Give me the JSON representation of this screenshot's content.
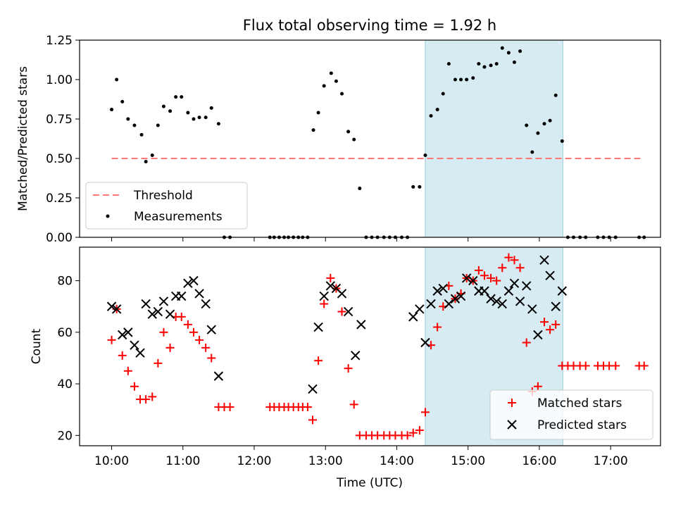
{
  "chart_data": {
    "title": "Flux total observing time = 1.92 h",
    "xlabel": "Time (UTC)",
    "x_unit": "hours UTC",
    "xlim": [
      9.55,
      17.7
    ],
    "x_ticks": [
      {
        "value": 10,
        "label": "10:00"
      },
      {
        "value": 11,
        "label": "11:00"
      },
      {
        "value": 12,
        "label": "12:00"
      },
      {
        "value": 13,
        "label": "13:00"
      },
      {
        "value": 14,
        "label": "14:00"
      },
      {
        "value": 15,
        "label": "15:00"
      },
      {
        "value": 16,
        "label": "16:00"
      },
      {
        "value": 17,
        "label": "17:00"
      }
    ],
    "highlight_span": {
      "x_start": 14.4,
      "x_end": 16.33,
      "color": "#add8e6"
    },
    "top": {
      "type": "scatter",
      "ylabel": "Matched/Predicted stars",
      "ylim": [
        0,
        1.25
      ],
      "y_ticks": [
        "0.00",
        "0.25",
        "0.50",
        "0.75",
        "1.00",
        "1.25"
      ],
      "legend_position": "lower-left",
      "threshold": {
        "name": "Threshold",
        "value": 0.5,
        "x_range": [
          10.0,
          17.47
        ],
        "color": "#ff7777"
      },
      "series": [
        {
          "name": "Measurements",
          "color": "#000000",
          "x": [
            10.0,
            10.07,
            10.15,
            10.23,
            10.32,
            10.42,
            10.48,
            10.57,
            10.65,
            10.73,
            10.82,
            10.9,
            10.98,
            11.07,
            11.15,
            11.23,
            11.32,
            11.4,
            11.5,
            11.58,
            11.66,
            12.22,
            12.28,
            12.35,
            12.42,
            12.48,
            12.55,
            12.62,
            12.68,
            12.75,
            12.83,
            12.9,
            12.98,
            13.08,
            13.15,
            13.23,
            13.32,
            13.4,
            13.48,
            13.57,
            13.65,
            13.73,
            13.82,
            13.9,
            13.98,
            14.07,
            14.15,
            14.23,
            14.32,
            14.4,
            14.48,
            14.57,
            14.65,
            14.73,
            14.82,
            14.9,
            14.98,
            15.07,
            15.15,
            15.23,
            15.32,
            15.4,
            15.48,
            15.57,
            15.65,
            15.73,
            15.82,
            15.9,
            15.98,
            16.07,
            16.15,
            16.23,
            16.32,
            16.4,
            16.48,
            16.57,
            16.65,
            16.82,
            16.9,
            16.98,
            17.07,
            17.4,
            17.47
          ],
          "y": [
            0.81,
            1.0,
            0.86,
            0.75,
            0.71,
            0.65,
            0.48,
            0.52,
            0.71,
            0.83,
            0.8,
            0.89,
            0.89,
            0.79,
            0.75,
            0.76,
            0.76,
            0.82,
            0.72,
            0.0,
            0.0,
            0.0,
            0.0,
            0.0,
            0.0,
            0.0,
            0.0,
            0.0,
            0.0,
            0.0,
            0.68,
            0.79,
            0.96,
            1.04,
            0.99,
            0.91,
            0.67,
            0.62,
            0.31,
            0.0,
            0.0,
            0.0,
            0.0,
            0.0,
            0.0,
            0.0,
            0.0,
            0.32,
            0.32,
            0.52,
            0.77,
            0.81,
            0.91,
            1.1,
            1.0,
            1.0,
            1.0,
            1.01,
            1.1,
            1.08,
            1.09,
            1.1,
            1.2,
            1.17,
            1.11,
            1.18,
            0.71,
            0.54,
            0.66,
            0.72,
            0.74,
            0.9,
            0.61,
            0.0,
            0.0,
            0.0,
            0.0,
            0.0,
            0.0,
            0.0,
            0.0,
            0.0,
            0.0
          ]
        }
      ]
    },
    "bottom": {
      "type": "scatter",
      "ylabel": "Count",
      "ylim": [
        16,
        93
      ],
      "y_ticks": [
        20,
        40,
        60,
        80
      ],
      "legend_position": "lower-right",
      "series": [
        {
          "name": "Matched stars",
          "marker": "plus",
          "color": "#ff0000",
          "x": [
            10.0,
            10.07,
            10.15,
            10.23,
            10.32,
            10.4,
            10.48,
            10.57,
            10.65,
            10.73,
            10.82,
            10.9,
            10.98,
            11.07,
            11.15,
            11.23,
            11.32,
            11.4,
            11.5,
            11.58,
            11.66,
            12.22,
            12.28,
            12.35,
            12.42,
            12.48,
            12.55,
            12.62,
            12.68,
            12.75,
            12.82,
            12.9,
            12.98,
            13.07,
            13.15,
            13.23,
            13.32,
            13.4,
            13.48,
            13.57,
            13.65,
            13.73,
            13.82,
            13.9,
            13.98,
            14.07,
            14.15,
            14.23,
            14.32,
            14.4,
            14.48,
            14.57,
            14.65,
            14.73,
            14.82,
            14.9,
            14.98,
            15.07,
            15.15,
            15.23,
            15.32,
            15.4,
            15.48,
            15.57,
            15.65,
            15.73,
            15.82,
            15.9,
            15.98,
            16.07,
            16.15,
            16.23,
            16.32,
            16.4,
            16.48,
            16.57,
            16.65,
            16.82,
            16.9,
            16.98,
            17.07,
            17.4,
            17.47
          ],
          "y": [
            57,
            69,
            51,
            45,
            39,
            34,
            34,
            35,
            48,
            60,
            54,
            66,
            66,
            63,
            60,
            57,
            54,
            50,
            31,
            31,
            31,
            31,
            31,
            31,
            31,
            31,
            31,
            31,
            31,
            31,
            26,
            49,
            71,
            81,
            77,
            68,
            46,
            32,
            20,
            20,
            20,
            20,
            20,
            20,
            20,
            20,
            20,
            21,
            22,
            29,
            55,
            62,
            70,
            78,
            73,
            75,
            81,
            80,
            84,
            82,
            81,
            80,
            85,
            89,
            88,
            85,
            56,
            37,
            39,
            64,
            61,
            63,
            47,
            47,
            47,
            47,
            47,
            47,
            47,
            47,
            47,
            47,
            47
          ]
        },
        {
          "name": "Predicted stars",
          "marker": "x",
          "color": "#000000",
          "x": [
            10.0,
            10.07,
            10.15,
            10.23,
            10.32,
            10.4,
            10.48,
            10.57,
            10.65,
            10.73,
            10.82,
            10.9,
            10.98,
            11.07,
            11.15,
            11.23,
            11.32,
            11.4,
            11.5,
            12.82,
            12.9,
            12.98,
            13.07,
            13.15,
            13.23,
            13.32,
            13.42,
            13.5,
            14.23,
            14.32,
            14.4,
            14.48,
            14.57,
            14.65,
            14.73,
            14.82,
            14.9,
            14.98,
            15.07,
            15.15,
            15.23,
            15.32,
            15.4,
            15.48,
            15.57,
            15.65,
            15.73,
            15.82,
            15.9,
            15.98,
            16.07,
            16.15,
            16.23,
            16.32
          ],
          "y": [
            70,
            69,
            59,
            60,
            55,
            52,
            71,
            67,
            68,
            72,
            67,
            74,
            74,
            79,
            80,
            75,
            71,
            61,
            43,
            38,
            62,
            74,
            78,
            77,
            75,
            68,
            51,
            63,
            66,
            69,
            56,
            71,
            76,
            77,
            71,
            73,
            74,
            81,
            80,
            76,
            76,
            73,
            72,
            71,
            76,
            79,
            72,
            78,
            69,
            59,
            88,
            82,
            70,
            76
          ]
        }
      ]
    }
  }
}
